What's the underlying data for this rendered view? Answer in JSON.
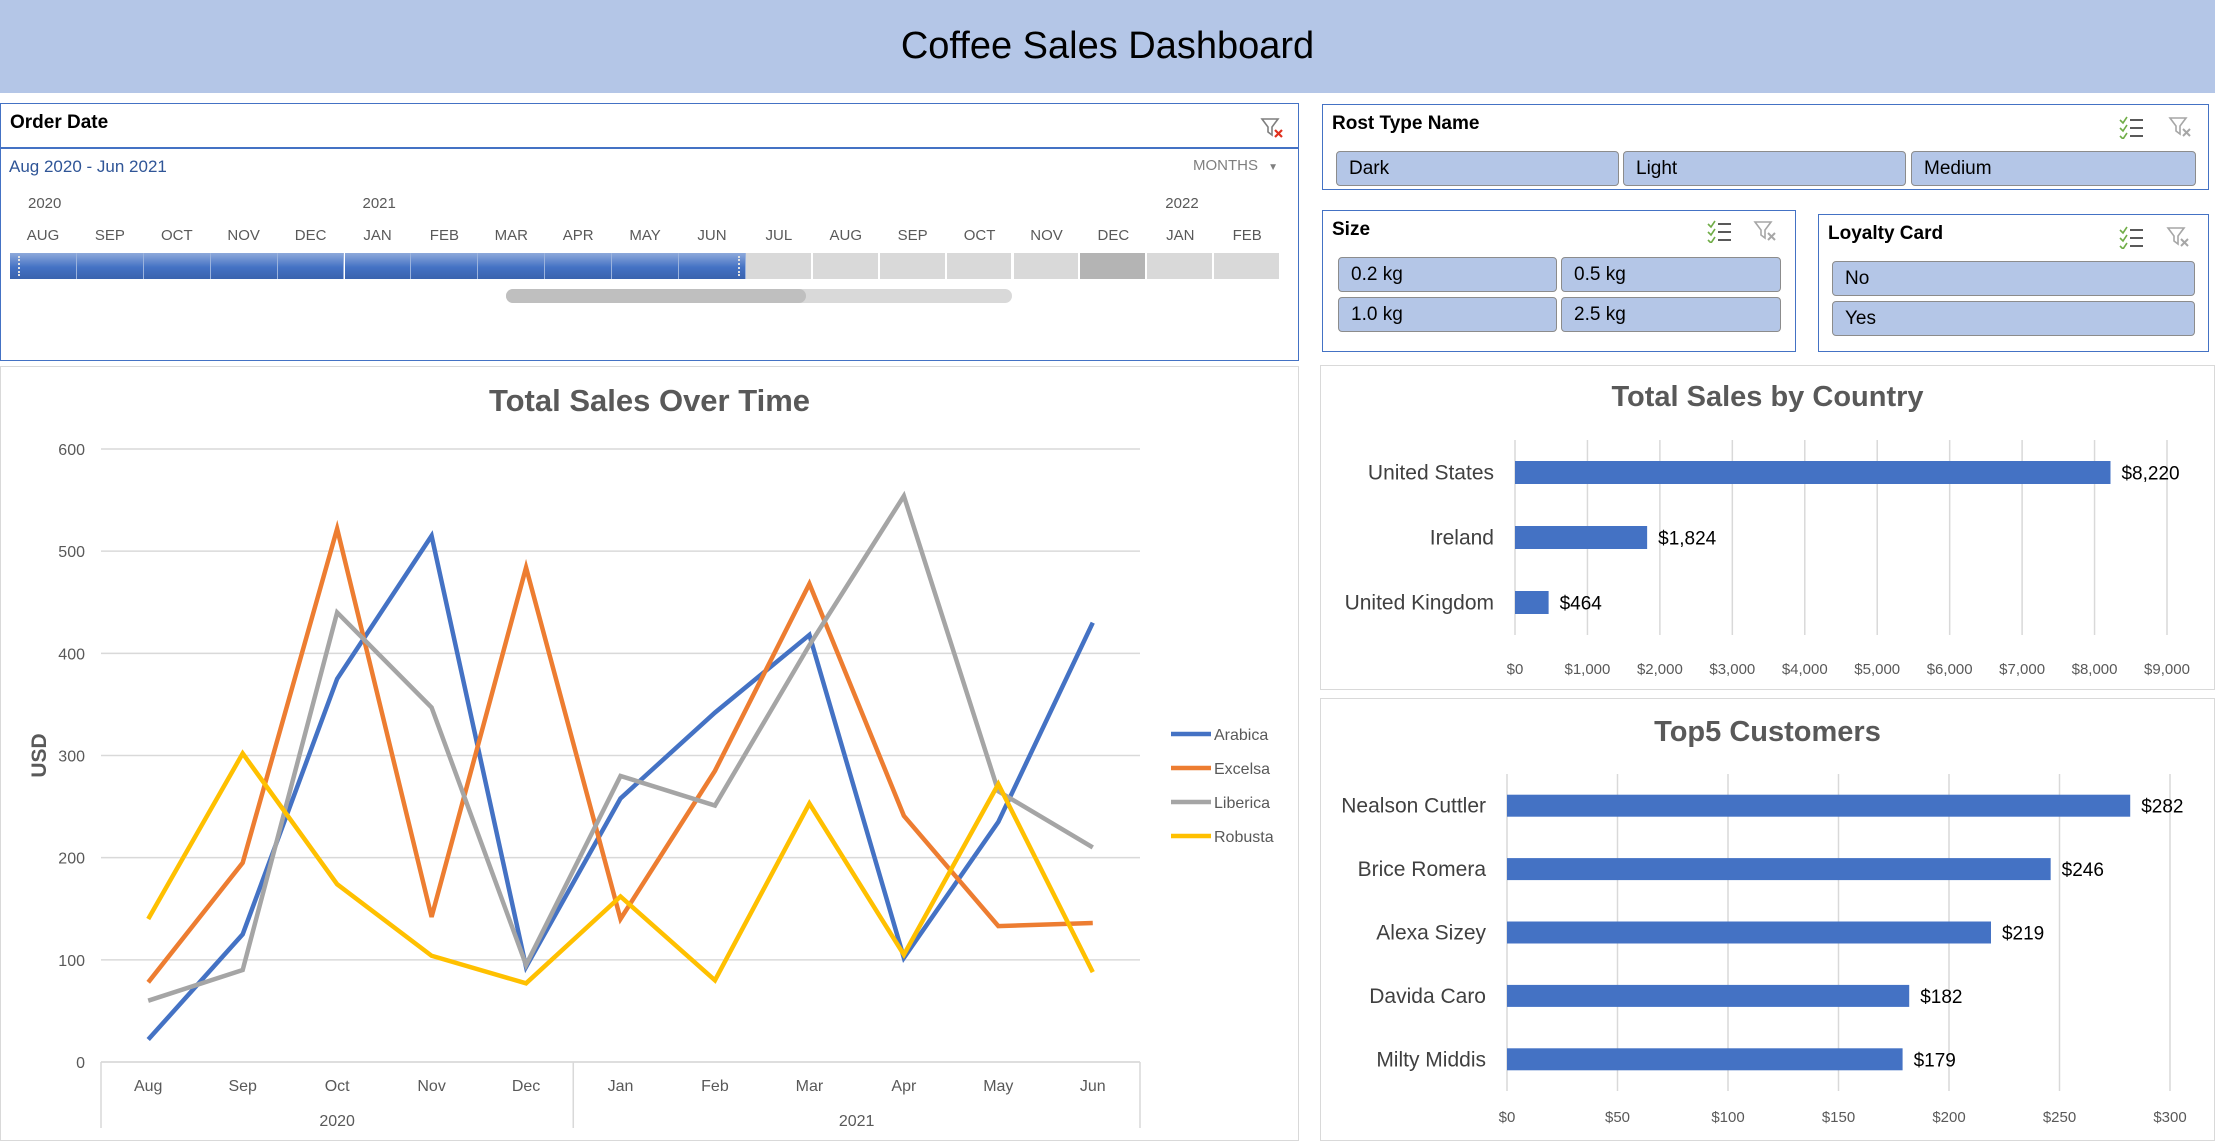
{
  "header": {
    "title": "Coffee Sales Dashboard"
  },
  "timeline": {
    "title": "Order Date",
    "range_label": "Aug 2020 - Jun 2021",
    "level_label": "MONTHS",
    "years": [
      "2020",
      "2021",
      "2022"
    ],
    "months": [
      "AUG",
      "SEP",
      "OCT",
      "NOV",
      "DEC",
      "JAN",
      "FEB",
      "MAR",
      "APR",
      "MAY",
      "JUN",
      "JUL",
      "AUG",
      "SEP",
      "OCT",
      "NOV",
      "DEC",
      "JAN",
      "FEB"
    ],
    "selected_count": 11
  },
  "roast_slicer": {
    "title": "Rost Type Name",
    "items": [
      "Dark",
      "Light",
      "Medium"
    ]
  },
  "size_slicer": {
    "title": "Size",
    "items": [
      "0.2 kg",
      "0.5 kg",
      "1.0 kg",
      "2.5 kg"
    ]
  },
  "loyalty_slicer": {
    "title": "Loyalty Card",
    "items": [
      "No",
      "Yes"
    ]
  },
  "colors": {
    "accent": "#4472c4",
    "header_bg": "#b4c6e7",
    "arabica": "#4472c4",
    "excelsa": "#ed7d31",
    "liberica": "#a5a5a5",
    "robusta": "#ffc000"
  },
  "chart_data": [
    {
      "type": "line",
      "title": "Total Sales Over Time",
      "xlabel": "",
      "ylabel": "USD",
      "categories": [
        "Aug",
        "Sep",
        "Oct",
        "Nov",
        "Dec",
        "Jan",
        "Feb",
        "Mar",
        "Apr",
        "May",
        "Jun"
      ],
      "category_groups": [
        {
          "label": "2020",
          "count": 5
        },
        {
          "label": "2021",
          "count": 6
        }
      ],
      "ylim": [
        0,
        600
      ],
      "yticks": [
        "0",
        "100",
        "200",
        "300",
        "400",
        "500",
        "600"
      ],
      "grid": true,
      "legend": "right",
      "series": [
        {
          "name": "Arabica",
          "color": "#4472c4",
          "values": [
            22,
            125,
            375,
            515,
            93,
            258,
            342,
            418,
            102,
            235,
            430
          ]
        },
        {
          "name": "Excelsa",
          "color": "#ed7d31",
          "values": [
            78,
            195,
            522,
            142,
            484,
            140,
            285,
            468,
            241,
            133,
            136
          ]
        },
        {
          "name": "Liberica",
          "color": "#a5a5a5",
          "values": [
            60,
            90,
            440,
            347,
            95,
            280,
            251,
            408,
            554,
            265,
            210
          ]
        },
        {
          "name": "Robusta",
          "color": "#ffc000",
          "values": [
            140,
            302,
            174,
            104,
            77,
            162,
            80,
            253,
            105,
            272,
            88
          ]
        }
      ]
    },
    {
      "type": "bar",
      "title": "Total Sales by Country",
      "categories": [
        "United States",
        "Ireland",
        "United Kingdom"
      ],
      "values": [
        8220,
        1824,
        464
      ],
      "data_labels": [
        "$8,220",
        "$1,824",
        "$464"
      ],
      "xlim": [
        0,
        9000
      ],
      "xticks": [
        "$0",
        "$1,000",
        "$2,000",
        "$3,000",
        "$4,000",
        "$5,000",
        "$6,000",
        "$7,000",
        "$8,000",
        "$9,000"
      ],
      "grid": true,
      "color": "#4472c4"
    },
    {
      "type": "bar",
      "title": "Top5 Customers",
      "categories": [
        "Nealson Cuttler",
        "Brice Romera",
        "Alexa Sizey",
        "Davida Caro",
        "Milty Middis"
      ],
      "values": [
        282,
        246,
        219,
        182,
        179
      ],
      "data_labels": [
        "$282",
        "$246",
        "$219",
        "$182",
        "$179"
      ],
      "xlim": [
        0,
        300
      ],
      "xticks": [
        "$0",
        "$50",
        "$100",
        "$150",
        "$200",
        "$250",
        "$300"
      ],
      "grid": true,
      "color": "#4472c4"
    }
  ]
}
